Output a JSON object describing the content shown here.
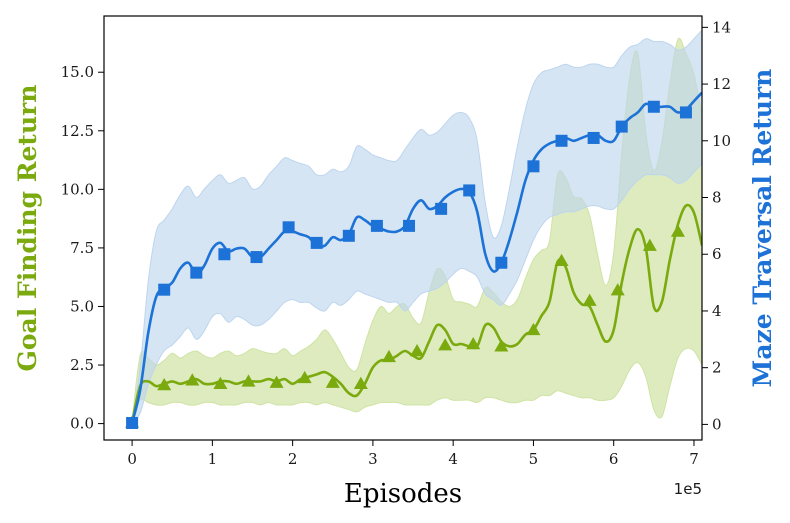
{
  "chart_data": {
    "type": "line",
    "xlabel": "Episodes",
    "x_multiplier_label": "1e5",
    "xlim": [
      -0.35,
      7.1
    ],
    "xticks": [
      0,
      1,
      2,
      3,
      4,
      5,
      6,
      7
    ],
    "y_left": {
      "label": "Goal Finding Return",
      "color": "#7aaa0d",
      "lim": [
        -0.7,
        17.4
      ],
      "ticks": [
        "0.0",
        "2.5",
        "5.0",
        "7.5",
        "10.0",
        "12.5",
        "15.0"
      ]
    },
    "y_right": {
      "label": "Maze Traversal Return",
      "color": "#1c72d6",
      "lim": [
        -0.55,
        14.4
      ],
      "ticks": [
        "0",
        "2",
        "4",
        "6",
        "8",
        "10",
        "12",
        "14"
      ]
    },
    "series": [
      {
        "axis": "left",
        "color": "#7aaa0d",
        "band_color": "#cfe3a4",
        "marker": "triangle",
        "x": [
          0,
          0.1,
          0.2,
          0.3,
          0.4,
          0.5,
          0.6,
          0.7,
          0.8,
          0.9,
          1.0,
          1.1,
          1.2,
          1.3,
          1.4,
          1.5,
          1.6,
          1.7,
          1.8,
          1.9,
          2.0,
          2.1,
          2.2,
          2.3,
          2.4,
          2.5,
          2.6,
          2.7,
          2.8,
          2.9,
          3.0,
          3.1,
          3.2,
          3.3,
          3.4,
          3.5,
          3.6,
          3.7,
          3.8,
          3.9,
          4.0,
          4.1,
          4.2,
          4.3,
          4.4,
          4.5,
          4.6,
          4.7,
          4.8,
          4.9,
          5.0,
          5.1,
          5.2,
          5.3,
          5.4,
          5.5,
          5.6,
          5.7,
          5.8,
          5.9,
          6.0,
          6.1,
          6.2,
          6.3,
          6.4,
          6.5,
          6.6,
          6.7,
          6.8,
          6.9,
          7.0,
          7.1
        ],
        "y": [
          0.05,
          1.6,
          1.8,
          1.6,
          1.7,
          1.8,
          1.7,
          1.8,
          1.9,
          1.7,
          1.7,
          1.8,
          1.8,
          1.7,
          1.8,
          1.8,
          1.8,
          1.9,
          1.8,
          1.9,
          1.7,
          1.9,
          2.0,
          2.1,
          2.2,
          2.0,
          1.7,
          1.3,
          1.2,
          1.7,
          2.4,
          2.7,
          2.7,
          2.9,
          3.1,
          2.9,
          2.8,
          3.5,
          4.2,
          4.0,
          3.4,
          3.4,
          3.3,
          3.3,
          4.2,
          4.1,
          3.5,
          3.3,
          3.4,
          3.8,
          4.0,
          4.6,
          5.2,
          6.9,
          6.7,
          5.6,
          5.1,
          5.0,
          4.2,
          3.5,
          4.0,
          6.0,
          7.5,
          8.3,
          7.5,
          5.0,
          5.2,
          7.0,
          8.5,
          9.3,
          9.0,
          7.6
        ],
        "lower": [
          0.0,
          1.0,
          0.9,
          0.8,
          0.8,
          0.9,
          0.9,
          0.8,
          0.8,
          0.9,
          0.9,
          0.8,
          0.8,
          0.8,
          0.9,
          0.9,
          0.8,
          0.9,
          0.8,
          0.8,
          0.8,
          0.9,
          0.9,
          0.8,
          0.9,
          0.8,
          0.7,
          0.6,
          0.5,
          0.7,
          0.8,
          0.9,
          0.9,
          0.9,
          0.8,
          0.8,
          0.8,
          0.8,
          1.0,
          1.1,
          1.0,
          1.0,
          1.0,
          0.9,
          1.1,
          1.1,
          1.0,
          0.9,
          0.9,
          1.0,
          1.0,
          1.2,
          1.2,
          1.4,
          1.3,
          1.2,
          1.1,
          1.1,
          1.0,
          1.0,
          1.1,
          1.6,
          2.3,
          2.6,
          2.0,
          0.6,
          0.3,
          1.6,
          2.8,
          3.2,
          3.1,
          2.5
        ],
        "upper": [
          0.1,
          2.9,
          2.8,
          2.5,
          2.7,
          3.0,
          2.8,
          3.0,
          3.1,
          2.9,
          2.8,
          3.0,
          3.1,
          2.9,
          3.0,
          3.2,
          3.1,
          3.0,
          3.0,
          3.2,
          2.9,
          3.1,
          3.3,
          3.6,
          4.0,
          3.6,
          3.0,
          2.4,
          2.3,
          3.4,
          4.4,
          5.0,
          4.7,
          5.0,
          5.1,
          4.5,
          4.3,
          5.6,
          6.6,
          6.3,
          5.3,
          5.2,
          5.1,
          5.0,
          5.8,
          5.6,
          5.2,
          5.0,
          5.3,
          6.2,
          7.0,
          7.4,
          7.8,
          10.6,
          10.5,
          9.7,
          9.6,
          8.9,
          7.2,
          5.9,
          7.3,
          11.5,
          14.8,
          15.8,
          12.4,
          10.8,
          12.0,
          14.5,
          16.4,
          15.8,
          14.9,
          13.2
        ],
        "marker_x": [
          0,
          0.4,
          0.75,
          1.1,
          1.45,
          1.8,
          2.15,
          2.5,
          2.85,
          3.2,
          3.55,
          3.9,
          4.25,
          4.6,
          5.0,
          5.35,
          5.7,
          6.05,
          6.45,
          6.8
        ],
        "marker_y": [
          0.05,
          1.65,
          1.85,
          1.7,
          1.8,
          1.75,
          1.95,
          1.75,
          1.7,
          2.85,
          3.1,
          3.35,
          3.4,
          3.3,
          4.0,
          6.95,
          5.25,
          5.7,
          7.6,
          8.2
        ]
      },
      {
        "axis": "right",
        "color": "#1c72d6",
        "band_color": "#bdd5ee",
        "marker": "square",
        "x": [
          0,
          0.1,
          0.2,
          0.3,
          0.4,
          0.5,
          0.6,
          0.7,
          0.8,
          0.9,
          1.0,
          1.1,
          1.2,
          1.3,
          1.4,
          1.5,
          1.6,
          1.7,
          1.8,
          1.9,
          2.0,
          2.1,
          2.2,
          2.3,
          2.4,
          2.5,
          2.6,
          2.7,
          2.8,
          2.9,
          3.0,
          3.1,
          3.2,
          3.3,
          3.4,
          3.5,
          3.6,
          3.7,
          3.8,
          3.9,
          4.0,
          4.1,
          4.2,
          4.3,
          4.4,
          4.5,
          4.6,
          4.7,
          4.8,
          4.9,
          5.0,
          5.1,
          5.2,
          5.3,
          5.4,
          5.5,
          5.6,
          5.7,
          5.8,
          5.9,
          6.0,
          6.1,
          6.2,
          6.3,
          6.4,
          6.5,
          6.6,
          6.7,
          6.8,
          6.9,
          7.0,
          7.1
        ],
        "y": [
          0.05,
          1.2,
          3.2,
          4.5,
          4.8,
          5.0,
          5.5,
          5.7,
          5.3,
          5.6,
          6.2,
          6.4,
          6.1,
          6.2,
          6.2,
          5.9,
          5.9,
          6.2,
          6.5,
          6.8,
          6.8,
          6.7,
          6.6,
          6.3,
          6.3,
          6.6,
          6.5,
          6.7,
          7.3,
          7.2,
          7.0,
          6.9,
          6.8,
          6.8,
          7.0,
          7.6,
          7.9,
          7.6,
          7.7,
          8.0,
          8.2,
          8.3,
          8.2,
          7.5,
          6.0,
          5.4,
          5.7,
          6.5,
          7.5,
          8.6,
          9.3,
          9.7,
          9.9,
          10.0,
          10.1,
          10.0,
          10.1,
          10.2,
          10.2,
          10.0,
          10.0,
          10.5,
          10.8,
          11.0,
          11.3,
          11.2,
          11.2,
          11.2,
          11.0,
          11.1,
          11.4,
          11.7
        ],
        "lower": [
          0.0,
          0.4,
          1.4,
          2.1,
          2.6,
          2.8,
          3.1,
          3.4,
          3.0,
          3.3,
          3.8,
          3.9,
          3.6,
          3.8,
          3.7,
          3.5,
          3.5,
          3.7,
          4.0,
          4.3,
          4.4,
          4.3,
          4.3,
          4.1,
          4.0,
          4.3,
          4.2,
          4.4,
          4.7,
          4.6,
          4.5,
          4.4,
          4.3,
          4.3,
          4.0,
          4.3,
          4.6,
          4.7,
          4.8,
          5.0,
          5.3,
          5.5,
          5.4,
          5.2,
          4.6,
          4.4,
          4.2,
          4.6,
          5.1,
          5.8,
          6.5,
          7.0,
          7.3,
          7.4,
          7.5,
          7.5,
          7.6,
          7.7,
          7.7,
          7.6,
          7.6,
          7.9,
          8.3,
          8.6,
          8.8,
          8.8,
          8.8,
          8.7,
          8.5,
          8.6,
          8.9,
          9.2
        ],
        "upper": [
          0.1,
          2.0,
          5.0,
          6.8,
          7.2,
          7.6,
          8.1,
          8.4,
          8.0,
          8.3,
          8.6,
          8.8,
          8.5,
          8.6,
          8.7,
          8.3,
          8.4,
          8.8,
          9.1,
          9.4,
          9.3,
          9.2,
          9.1,
          8.8,
          8.8,
          9.0,
          8.9,
          9.1,
          9.8,
          9.7,
          9.5,
          9.4,
          9.3,
          9.3,
          9.7,
          10.1,
          10.4,
          10.2,
          10.3,
          10.6,
          10.9,
          11.0,
          10.8,
          10.0,
          7.8,
          6.6,
          7.0,
          8.3,
          9.8,
          11.1,
          12.0,
          12.4,
          12.5,
          12.6,
          12.7,
          12.6,
          12.6,
          12.7,
          12.7,
          12.6,
          12.6,
          13.0,
          13.3,
          13.4,
          13.6,
          13.5,
          13.5,
          13.4,
          13.2,
          13.3,
          13.6,
          13.9
        ],
        "marker_x": [
          0,
          0.4,
          0.8,
          1.15,
          1.55,
          1.95,
          2.3,
          2.7,
          3.05,
          3.45,
          3.85,
          4.2,
          4.6,
          5.0,
          5.35,
          5.75,
          6.1,
          6.5,
          6.9
        ],
        "marker_y": [
          0.05,
          4.75,
          5.35,
          6.0,
          5.9,
          6.95,
          6.4,
          6.65,
          7.0,
          7.0,
          7.6,
          8.25,
          5.7,
          9.1,
          10.0,
          10.1,
          10.5,
          11.2,
          11.0
        ]
      }
    ]
  }
}
